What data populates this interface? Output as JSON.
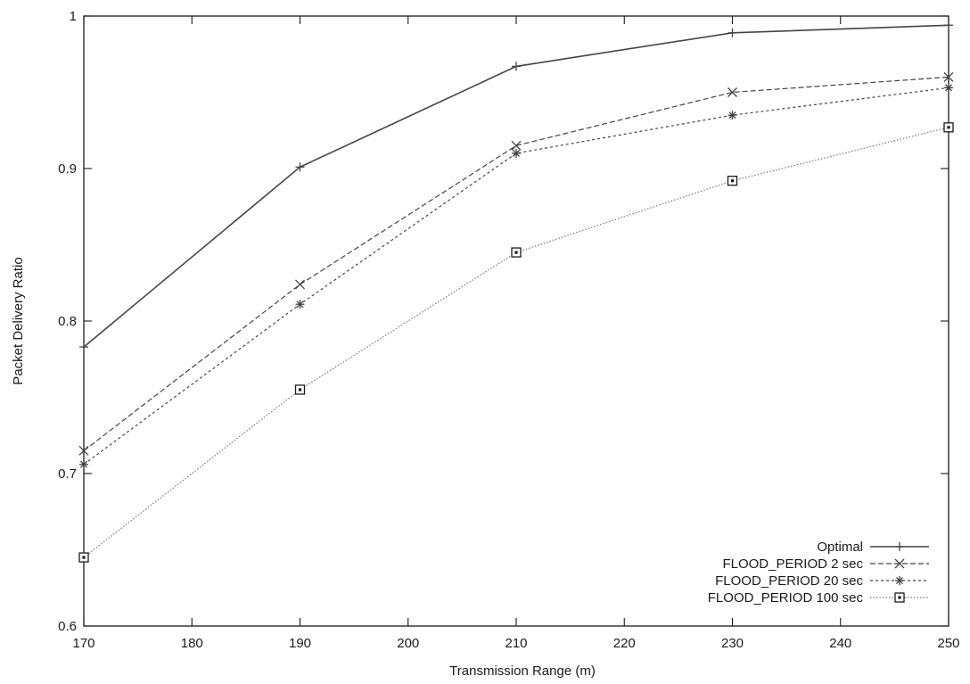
{
  "chart_data": {
    "type": "line",
    "title": "",
    "xlabel": "Transmission Range (m)",
    "ylabel": "Packet Delivery Ratio",
    "xlim": [
      170,
      250
    ],
    "ylim": [
      0.6,
      1
    ],
    "xticks": [
      170,
      180,
      190,
      200,
      210,
      220,
      230,
      240,
      250
    ],
    "yticks": [
      0.6,
      0.7,
      0.8,
      0.9,
      1
    ],
    "ytick_labels": [
      "0.6",
      "0.7",
      "0.8",
      "0.9",
      "1"
    ],
    "grid": false,
    "legend_position": "bottom-right",
    "x": [
      170,
      190,
      210,
      230,
      250
    ],
    "series": [
      {
        "name": "Optimal",
        "marker": "plus",
        "dash": "solid",
        "color": "#444444",
        "values": [
          0.783,
          0.901,
          0.967,
          0.989,
          0.994
        ]
      },
      {
        "name": "FLOOD_PERIOD 2 sec",
        "marker": "cross",
        "dash": "dashed",
        "color": "#444444",
        "values": [
          0.715,
          0.824,
          0.915,
          0.95,
          0.96
        ]
      },
      {
        "name": "FLOOD_PERIOD 20 sec",
        "marker": "star",
        "dash": "dotted",
        "color": "#444444",
        "values": [
          0.706,
          0.811,
          0.91,
          0.935,
          0.953
        ]
      },
      {
        "name": "FLOOD_PERIOD 100 sec",
        "marker": "square",
        "dash": "fine-dotted",
        "color": "#777777",
        "values": [
          0.645,
          0.755,
          0.845,
          0.892,
          0.927
        ]
      }
    ]
  }
}
